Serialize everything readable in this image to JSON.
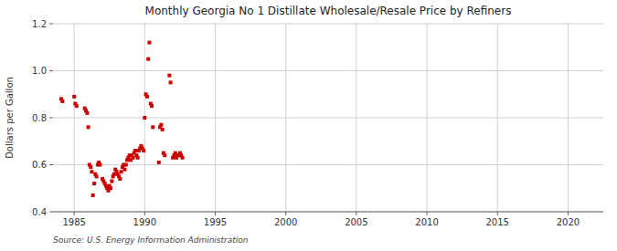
{
  "chart_data": {
    "type": "scatter",
    "title": "Monthly Georgia No 1 Distillate Wholesale/Resale Price by Refiners",
    "ylabel": "Dollars per Gallon",
    "source": "Source: U.S. Energy Information Administration",
    "color": "#cc0000",
    "marker": "square",
    "grid": true,
    "xlim": [
      1983.5,
      2022.5
    ],
    "ylim": [
      0.4,
      1.2
    ],
    "xticks": [
      1985,
      1990,
      1995,
      2000,
      2005,
      2010,
      2015,
      2020
    ],
    "yticks": [
      0.4,
      0.6,
      0.8,
      {
        "value": 1.0,
        "label": "1.0"
      },
      1.2
    ],
    "x": [
      1984.08,
      1984.17,
      1985.0,
      1985.08,
      1985.17,
      1985.75,
      1985.83,
      1985.92,
      1986.0,
      1986.08,
      1986.17,
      1986.25,
      1986.33,
      1986.42,
      1986.5,
      1986.58,
      1986.67,
      1986.75,
      1986.83,
      1987.0,
      1987.08,
      1987.17,
      1987.25,
      1987.33,
      1987.42,
      1987.5,
      1987.58,
      1987.67,
      1987.75,
      1987.83,
      1987.92,
      1988.0,
      1988.08,
      1988.17,
      1988.25,
      1988.33,
      1988.42,
      1988.5,
      1988.58,
      1988.67,
      1988.75,
      1988.83,
      1988.92,
      1989.0,
      1989.08,
      1989.17,
      1989.25,
      1989.33,
      1989.42,
      1989.5,
      1989.58,
      1989.67,
      1989.75,
      1989.83,
      1989.92,
      1990.0,
      1990.08,
      1990.17,
      1990.25,
      1990.33,
      1990.42,
      1990.5,
      1990.58,
      1991.0,
      1991.08,
      1991.17,
      1991.25,
      1991.33,
      1991.42,
      1991.75,
      1991.83,
      1992.0,
      1992.08,
      1992.17,
      1992.25,
      1992.33,
      1992.42,
      1992.5,
      1992.58,
      1992.67
    ],
    "values": [
      0.88,
      0.87,
      0.89,
      0.86,
      0.85,
      0.84,
      0.83,
      0.82,
      0.76,
      0.6,
      0.59,
      0.57,
      0.47,
      0.52,
      0.56,
      0.55,
      0.6,
      0.61,
      0.6,
      0.54,
      0.53,
      0.52,
      0.51,
      0.5,
      0.49,
      0.51,
      0.5,
      0.53,
      0.55,
      0.56,
      0.58,
      0.57,
      0.56,
      0.55,
      0.54,
      0.57,
      0.59,
      0.6,
      0.58,
      0.6,
      0.62,
      0.63,
      0.64,
      0.62,
      0.64,
      0.63,
      0.65,
      0.66,
      0.64,
      0.63,
      0.66,
      0.67,
      0.68,
      0.67,
      0.66,
      0.8,
      0.9,
      0.89,
      1.05,
      1.12,
      0.86,
      0.85,
      0.76,
      0.61,
      0.76,
      0.77,
      0.75,
      0.65,
      0.64,
      0.98,
      0.95,
      0.63,
      0.64,
      0.65,
      0.63,
      0.64,
      0.64,
      0.65,
      0.64,
      0.63
    ]
  }
}
